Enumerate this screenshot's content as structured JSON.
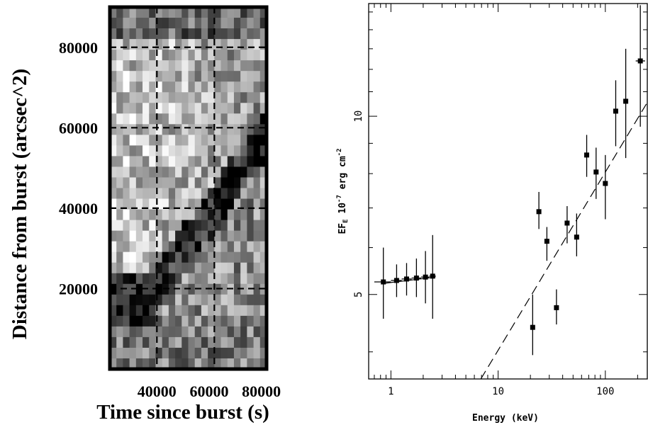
{
  "chart_data": [
    {
      "type": "heatmap",
      "title": "",
      "xlabel": "Time since burst (s)",
      "ylabel": "Distance from burst (arcsec^2)",
      "xlim": [
        22000,
        82000
      ],
      "ylim": [
        0,
        90000
      ],
      "x_ticks": [
        40000,
        60000,
        80000
      ],
      "x_tick_labels": [
        "40000",
        "60000",
        "80000"
      ],
      "y_ticks": [
        20000,
        40000,
        60000,
        80000
      ],
      "y_tick_labels": [
        "20000",
        "40000",
        "60000",
        "80000"
      ],
      "reference_lines": {
        "x": [
          40000,
          62000
        ],
        "y": [
          20000,
          40000,
          60000,
          80000
        ]
      },
      "grid": {
        "cols": 24,
        "rows": 34
      },
      "colormap": "grayscale"
    },
    {
      "type": "scatter",
      "title": "",
      "xlabel": "Energy (keV)",
      "ylabel": "EF_E 10^-7 erg cm^-2",
      "ylabel_parts": {
        "main": "EF",
        "sub": "E",
        "mid": " 10",
        "sup1": "-7",
        "tail": " erg cm",
        "sup2": "-2"
      },
      "xscale": "log",
      "yscale": "log",
      "xlim": [
        0.62,
        250
      ],
      "ylim": [
        3.6,
        15.5
      ],
      "x_ticks": [
        1,
        10,
        100
      ],
      "x_tick_labels": [
        "1",
        "10",
        "100"
      ],
      "y_ticks": [
        5,
        10
      ],
      "y_tick_labels": [
        "5",
        "10"
      ],
      "points": [
        {
          "x": 0.85,
          "y": 5.25,
          "xlo": 0.7,
          "xhi": 1.0,
          "ylo": 4.55,
          "yhi": 6.0
        },
        {
          "x": 1.13,
          "y": 5.28,
          "xlo": 1.0,
          "xhi": 1.26,
          "ylo": 4.95,
          "yhi": 5.62
        },
        {
          "x": 1.4,
          "y": 5.31,
          "xlo": 1.26,
          "xhi": 1.56,
          "ylo": 4.98,
          "yhi": 5.65
        },
        {
          "x": 1.73,
          "y": 5.33,
          "xlo": 1.56,
          "xhi": 1.91,
          "ylo": 4.95,
          "yhi": 5.75
        },
        {
          "x": 2.1,
          "y": 5.35,
          "xlo": 1.91,
          "xhi": 2.28,
          "ylo": 4.83,
          "yhi": 5.92
        },
        {
          "x": 2.45,
          "y": 5.37,
          "xlo": 2.28,
          "xhi": 2.62,
          "ylo": 4.55,
          "yhi": 6.3
        },
        {
          "x": 21,
          "y": 4.4,
          "xlo": 21,
          "xhi": 21,
          "ylo": 3.95,
          "yhi": 5.0
        },
        {
          "x": 24,
          "y": 6.9,
          "xlo": 24,
          "xhi": 24,
          "ylo": 6.45,
          "yhi": 7.45
        },
        {
          "x": 28.5,
          "y": 6.15,
          "xlo": 28.5,
          "xhi": 28.5,
          "ylo": 5.7,
          "yhi": 6.5
        },
        {
          "x": 35,
          "y": 4.75,
          "xlo": 35,
          "xhi": 35,
          "ylo": 4.45,
          "yhi": 5.1
        },
        {
          "x": 44,
          "y": 6.6,
          "xlo": 44,
          "xhi": 44,
          "ylo": 6.1,
          "yhi": 7.05
        },
        {
          "x": 54,
          "y": 6.25,
          "xlo": 54,
          "xhi": 54,
          "ylo": 5.8,
          "yhi": 6.85
        },
        {
          "x": 67,
          "y": 8.6,
          "xlo": 67,
          "xhi": 67,
          "ylo": 7.9,
          "yhi": 9.3
        },
        {
          "x": 82,
          "y": 8.05,
          "xlo": 82,
          "xhi": 82,
          "ylo": 7.25,
          "yhi": 8.85
        },
        {
          "x": 100,
          "y": 7.7,
          "xlo": 100,
          "xhi": 100,
          "ylo": 6.7,
          "yhi": 8.6
        },
        {
          "x": 125,
          "y": 10.2,
          "xlo": 125,
          "xhi": 125,
          "ylo": 8.9,
          "yhi": 11.5
        },
        {
          "x": 155,
          "y": 10.6,
          "xlo": 155,
          "xhi": 155,
          "ylo": 8.5,
          "yhi": 13.0
        },
        {
          "x": 212,
          "y": 12.4,
          "xlo": 192,
          "xhi": 235,
          "ylo": 9.6,
          "yhi": 15.4
        }
      ],
      "model_segments": [
        {
          "x": [
            0.85,
            2.6
          ],
          "y": [
            5.22,
            5.35
          ]
        },
        {
          "x": [
            6.9,
            250
          ],
          "y": [
            3.6,
            10.6
          ]
        }
      ]
    }
  ]
}
